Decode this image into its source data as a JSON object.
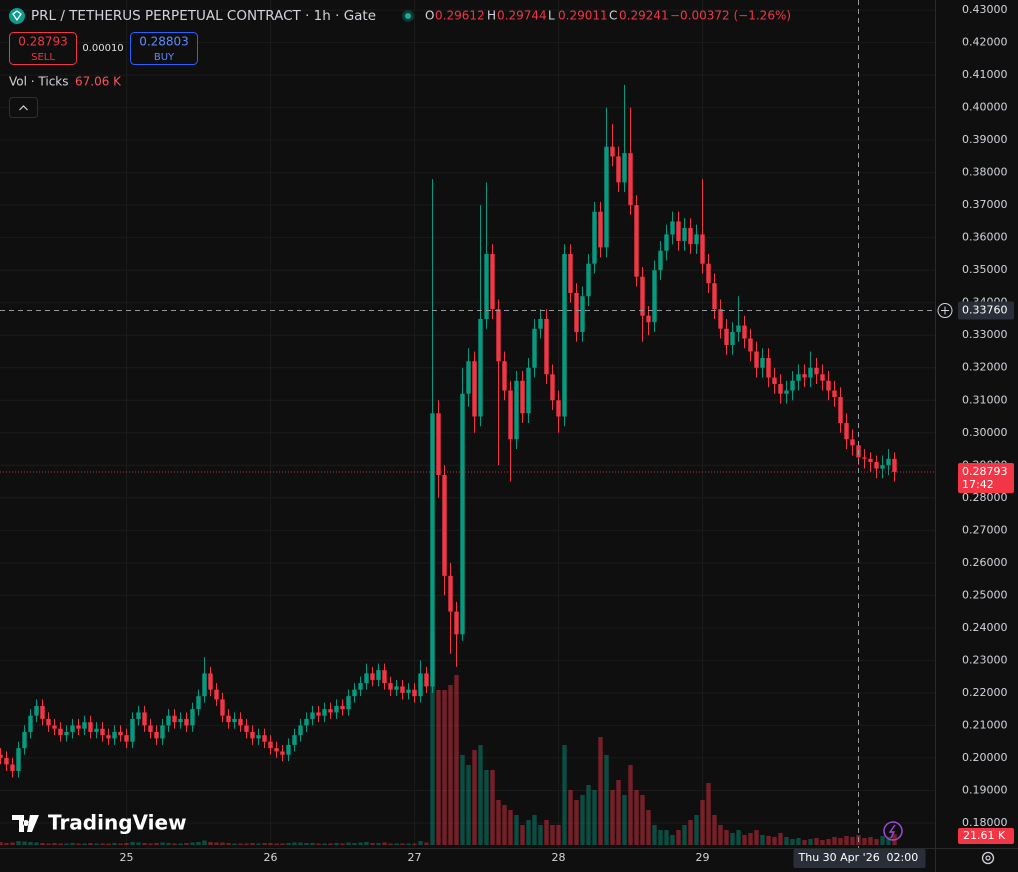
{
  "chart_data": {
    "type": "candlestick",
    "title": "PRL / TETHERUS PERPETUAL CONTRACT · 1h · Gate",
    "legend_ohlc": {
      "labels": [
        "O",
        "H",
        "L",
        "C"
      ],
      "values": [
        0.29612,
        0.29744,
        0.29011,
        0.29241
      ],
      "change": "−0.00372 (−1.26%)"
    },
    "order_panel": {
      "sell_price": 0.28793,
      "sell_label": "SELL",
      "spread": {
        "value": 0.0001,
        "label": "0.00010"
      },
      "buy_price": 0.28803,
      "buy_label": "BUY"
    },
    "volume_indicator": {
      "title": "Vol · Ticks",
      "value": {
        "value": 67060,
        "label": "67.06 K"
      }
    },
    "watermark": "TradingView",
    "up_color": "#089981",
    "down_color": "#f23645",
    "categories": [
      null,
      null,
      null,
      null,
      null,
      null,
      null,
      null,
      null,
      null,
      null,
      null,
      null,
      null,
      null,
      null,
      null,
      null,
      null,
      null,
      null,
      "25",
      null,
      null,
      null,
      null,
      null,
      null,
      null,
      null,
      null,
      null,
      null,
      null,
      null,
      null,
      null,
      null,
      null,
      null,
      null,
      null,
      null,
      null,
      null,
      "26",
      null,
      null,
      null,
      null,
      null,
      null,
      null,
      null,
      null,
      null,
      null,
      null,
      null,
      null,
      null,
      null,
      null,
      null,
      null,
      null,
      null,
      null,
      null,
      "27",
      null,
      null,
      null,
      null,
      null,
      null,
      null,
      null,
      null,
      null,
      null,
      null,
      null,
      null,
      null,
      null,
      null,
      null,
      null,
      null,
      null,
      null,
      null,
      "28",
      null,
      null,
      null,
      null,
      null,
      null,
      null,
      null,
      null,
      null,
      null,
      null,
      null,
      null,
      null,
      null,
      null,
      null,
      null,
      null,
      null,
      null,
      null,
      "29",
      null,
      null,
      null,
      null,
      null,
      null,
      null,
      null,
      null,
      null,
      null,
      null,
      null,
      null,
      null,
      null,
      null,
      null,
      null,
      null,
      null,
      null,
      null,
      null,
      null,
      null,
      null,
      null,
      null,
      null,
      null,
      null
    ],
    "open": [
      0.201,
      0.2,
      0.198,
      0.196,
      0.203,
      0.208,
      0.213,
      0.216,
      0.212,
      0.21,
      0.209,
      0.207,
      0.208,
      0.21,
      0.209,
      0.211,
      0.208,
      0.209,
      0.207,
      0.206,
      0.208,
      0.207,
      0.205,
      0.212,
      0.214,
      0.21,
      0.208,
      0.206,
      0.21,
      0.213,
      0.211,
      0.212,
      0.21,
      0.215,
      0.219,
      0.226,
      0.221,
      0.218,
      0.213,
      0.211,
      0.212,
      0.21,
      0.208,
      0.206,
      0.207,
      0.205,
      0.203,
      0.202,
      0.201,
      0.204,
      0.207,
      0.21,
      0.212,
      0.214,
      0.213,
      0.215,
      0.214,
      0.216,
      0.215,
      0.219,
      0.221,
      0.223,
      0.226,
      0.224,
      0.227,
      0.223,
      0.221,
      0.222,
      0.22,
      0.221,
      0.219,
      0.226,
      0.222,
      0.306,
      0.287,
      0.256,
      0.245,
      0.238,
      0.312,
      0.322,
      0.305,
      0.335,
      0.355,
      0.338,
      0.322,
      0.313,
      0.298,
      0.316,
      0.306,
      0.32,
      0.332,
      0.335,
      0.318,
      0.31,
      0.305,
      0.355,
      0.343,
      0.331,
      0.342,
      0.352,
      0.368,
      0.357,
      0.388,
      0.385,
      0.377,
      0.386,
      0.37,
      0.348,
      0.336,
      0.334,
      0.35,
      0.356,
      0.361,
      0.365,
      0.359,
      0.363,
      0.358,
      0.361,
      0.352,
      0.346,
      0.338,
      0.332,
      0.327,
      0.331,
      0.333,
      0.329,
      0.325,
      0.32,
      0.323,
      0.317,
      0.315,
      0.312,
      0.313,
      0.316,
      0.318,
      0.317,
      0.32,
      0.318,
      0.316,
      0.313,
      0.311,
      0.303,
      0.298,
      0.29612,
      0.29241,
      0.292,
      0.291,
      0.289,
      0.29,
      0.292
    ],
    "high": [
      0.203,
      0.202,
      0.2,
      0.205,
      0.21,
      0.215,
      0.218,
      0.218,
      0.214,
      0.212,
      0.211,
      0.21,
      0.212,
      0.212,
      0.213,
      0.213,
      0.211,
      0.211,
      0.209,
      0.21,
      0.21,
      0.209,
      0.214,
      0.216,
      0.216,
      0.212,
      0.21,
      0.212,
      0.215,
      0.215,
      0.214,
      0.214,
      0.217,
      0.221,
      0.231,
      0.228,
      0.223,
      0.22,
      0.215,
      0.214,
      0.214,
      0.212,
      0.21,
      0.209,
      0.209,
      0.207,
      0.205,
      0.204,
      0.206,
      0.209,
      0.212,
      0.214,
      0.216,
      0.216,
      0.217,
      0.217,
      0.218,
      0.218,
      0.221,
      0.223,
      0.225,
      0.229,
      0.228,
      0.229,
      0.229,
      0.225,
      0.224,
      0.224,
      0.223,
      0.223,
      0.23,
      0.228,
      0.378,
      0.31,
      0.29,
      0.26,
      0.248,
      0.32,
      0.326,
      0.325,
      0.37,
      0.377,
      0.358,
      0.341,
      0.325,
      0.316,
      0.319,
      0.319,
      0.323,
      0.335,
      0.338,
      0.338,
      0.321,
      0.313,
      0.358,
      0.358,
      0.346,
      0.345,
      0.355,
      0.371,
      0.371,
      0.4,
      0.395,
      0.388,
      0.407,
      0.4,
      0.373,
      0.351,
      0.339,
      0.353,
      0.359,
      0.364,
      0.368,
      0.368,
      0.366,
      0.366,
      0.364,
      0.378,
      0.355,
      0.349,
      0.341,
      0.335,
      0.334,
      0.342,
      0.336,
      0.332,
      0.328,
      0.326,
      0.326,
      0.32,
      0.318,
      0.316,
      0.319,
      0.321,
      0.321,
      0.325,
      0.323,
      0.321,
      0.319,
      0.316,
      0.314,
      0.306,
      0.301,
      0.29744,
      0.295,
      0.294,
      0.293,
      0.293,
      0.295,
      0.294
    ],
    "low": [
      0.198,
      0.196,
      0.194,
      0.194,
      0.201,
      0.206,
      0.211,
      0.21,
      0.208,
      0.207,
      0.205,
      0.205,
      0.206,
      0.207,
      0.207,
      0.206,
      0.206,
      0.205,
      0.204,
      0.204,
      0.205,
      0.203,
      0.203,
      0.21,
      0.208,
      0.206,
      0.204,
      0.204,
      0.208,
      0.209,
      0.209,
      0.208,
      0.208,
      0.213,
      0.217,
      0.219,
      0.216,
      0.211,
      0.209,
      0.209,
      0.208,
      0.206,
      0.204,
      0.204,
      0.203,
      0.201,
      0.2,
      0.199,
      0.199,
      0.202,
      0.205,
      0.208,
      0.21,
      0.211,
      0.211,
      0.212,
      0.212,
      0.213,
      0.213,
      0.217,
      0.219,
      0.221,
      0.222,
      0.222,
      0.221,
      0.219,
      0.219,
      0.218,
      0.218,
      0.217,
      0.217,
      0.22,
      0.22,
      0.28,
      0.25,
      0.232,
      0.228,
      0.236,
      0.308,
      0.3,
      0.302,
      0.332,
      0.335,
      0.29,
      0.31,
      0.285,
      0.295,
      0.303,
      0.303,
      0.317,
      0.329,
      0.315,
      0.307,
      0.3,
      0.302,
      0.34,
      0.328,
      0.328,
      0.339,
      0.349,
      0.354,
      0.354,
      0.382,
      0.374,
      0.374,
      0.367,
      0.345,
      0.328,
      0.33,
      0.331,
      0.347,
      0.353,
      0.358,
      0.356,
      0.356,
      0.355,
      0.355,
      0.349,
      0.343,
      0.335,
      0.329,
      0.324,
      0.324,
      0.328,
      0.326,
      0.322,
      0.317,
      0.317,
      0.314,
      0.312,
      0.309,
      0.309,
      0.31,
      0.313,
      0.314,
      0.314,
      0.315,
      0.313,
      0.31,
      0.308,
      0.3,
      0.295,
      0.293,
      0.29011,
      0.289,
      0.288,
      0.286,
      0.286,
      0.287,
      0.285
    ],
    "close": [
      0.2,
      0.198,
      0.196,
      0.203,
      0.208,
      0.213,
      0.216,
      0.212,
      0.21,
      0.209,
      0.207,
      0.208,
      0.21,
      0.209,
      0.211,
      0.208,
      0.209,
      0.207,
      0.206,
      0.208,
      0.207,
      0.205,
      0.212,
      0.214,
      0.21,
      0.208,
      0.206,
      0.21,
      0.213,
      0.211,
      0.212,
      0.21,
      0.215,
      0.219,
      0.226,
      0.221,
      0.218,
      0.213,
      0.211,
      0.212,
      0.21,
      0.208,
      0.206,
      0.207,
      0.205,
      0.203,
      0.202,
      0.201,
      0.204,
      0.207,
      0.21,
      0.212,
      0.214,
      0.213,
      0.215,
      0.214,
      0.216,
      0.215,
      0.219,
      0.221,
      0.223,
      0.226,
      0.224,
      0.227,
      0.223,
      0.221,
      0.222,
      0.22,
      0.221,
      0.219,
      0.226,
      0.222,
      0.306,
      0.287,
      0.256,
      0.245,
      0.238,
      0.312,
      0.322,
      0.305,
      0.335,
      0.355,
      0.338,
      0.322,
      0.313,
      0.298,
      0.316,
      0.306,
      0.32,
      0.332,
      0.335,
      0.318,
      0.31,
      0.305,
      0.355,
      0.343,
      0.331,
      0.342,
      0.352,
      0.368,
      0.357,
      0.388,
      0.385,
      0.377,
      0.386,
      0.37,
      0.348,
      0.336,
      0.334,
      0.35,
      0.356,
      0.361,
      0.365,
      0.359,
      0.363,
      0.358,
      0.361,
      0.352,
      0.346,
      0.338,
      0.332,
      0.327,
      0.331,
      0.333,
      0.329,
      0.325,
      0.32,
      0.323,
      0.317,
      0.315,
      0.312,
      0.313,
      0.316,
      0.318,
      0.317,
      0.32,
      0.318,
      0.316,
      0.313,
      0.311,
      0.303,
      0.298,
      0.29612,
      0.29241,
      0.292,
      0.291,
      0.289,
      0.29,
      0.292,
      0.28793
    ],
    "volume": [
      6000,
      4000,
      5000,
      8000,
      7000,
      6000,
      5000,
      4000,
      3000,
      4000,
      3000,
      3000,
      4000,
      3000,
      3000,
      4000,
      3000,
      3000,
      3000,
      4000,
      3000,
      4000,
      6000,
      5000,
      4000,
      3000,
      4000,
      5000,
      4000,
      3000,
      3000,
      4000,
      5000,
      6000,
      9000,
      6000,
      5000,
      5000,
      4000,
      3000,
      3000,
      3000,
      4000,
      3000,
      4000,
      4000,
      3000,
      3000,
      4000,
      5000,
      5000,
      4000,
      4000,
      3000,
      3000,
      3000,
      4000,
      3000,
      5000,
      4000,
      5000,
      6000,
      4000,
      4000,
      5000,
      3000,
      3000,
      3000,
      3000,
      3000,
      8000,
      5000,
      426000,
      310000,
      310000,
      320000,
      340000,
      180000,
      160000,
      190000,
      200000,
      150000,
      150000,
      90000,
      80000,
      70000,
      60000,
      40000,
      50000,
      60000,
      40000,
      50000,
      40000,
      40000,
      200000,
      110000,
      90000,
      100000,
      120000,
      110000,
      216000,
      180000,
      110000,
      130000,
      100000,
      160000,
      110000,
      100000,
      70000,
      40000,
      30000,
      30000,
      20000,
      30000,
      40000,
      50000,
      60000,
      90000,
      124000,
      60000,
      40000,
      30000,
      24000,
      30000,
      20000,
      24000,
      30000,
      20000,
      18000,
      16000,
      24000,
      16000,
      12000,
      14000,
      10000,
      12000,
      14000,
      10000,
      12000,
      16000,
      14000,
      18000,
      16000,
      20000,
      14000,
      16000,
      12000,
      18000,
      16000,
      21610
    ],
    "last_volume": {
      "value": 21610,
      "label": "21.61 K"
    },
    "last_price": 0.28793,
    "countdown": "17:42",
    "crosshair": {
      "price": {
        "value": 0.3376,
        "label": "0.33760"
      },
      "date": "Thu 30 Apr '26",
      "time": "02:00"
    },
    "ylim": [
      0.1723,
      0.4331
    ],
    "yticks": [
      {
        "value": 0.18,
        "label": "0.18000"
      },
      {
        "value": 0.19,
        "label": "0.19000"
      },
      {
        "value": 0.2,
        "label": "0.20000"
      },
      {
        "value": 0.21,
        "label": "0.21000"
      },
      {
        "value": 0.22,
        "label": "0.22000"
      },
      {
        "value": 0.23,
        "label": "0.23000"
      },
      {
        "value": 0.24,
        "label": "0.24000"
      },
      {
        "value": 0.25,
        "label": "0.25000"
      },
      {
        "value": 0.26,
        "label": "0.26000"
      },
      {
        "value": 0.27,
        "label": "0.27000"
      },
      {
        "value": 0.28,
        "label": "0.28000"
      },
      {
        "value": 0.29,
        "label": "0.29000"
      },
      {
        "value": 0.3,
        "label": "0.30000"
      },
      {
        "value": 0.31,
        "label": "0.31000"
      },
      {
        "value": 0.32,
        "label": "0.32000"
      },
      {
        "value": 0.33,
        "label": "0.33000"
      },
      {
        "value": 0.34,
        "label": "0.34000"
      },
      {
        "value": 0.35,
        "label": "0.35000"
      },
      {
        "value": 0.36,
        "label": "0.36000"
      },
      {
        "value": 0.37,
        "label": "0.37000"
      },
      {
        "value": 0.38,
        "label": "0.38000"
      },
      {
        "value": 0.39,
        "label": "0.39000"
      },
      {
        "value": 0.4,
        "label": "0.40000"
      },
      {
        "value": 0.41,
        "label": "0.41000"
      },
      {
        "value": 0.42,
        "label": "0.42000"
      },
      {
        "value": 0.43,
        "label": "0.43000"
      }
    ],
    "grid": true
  }
}
